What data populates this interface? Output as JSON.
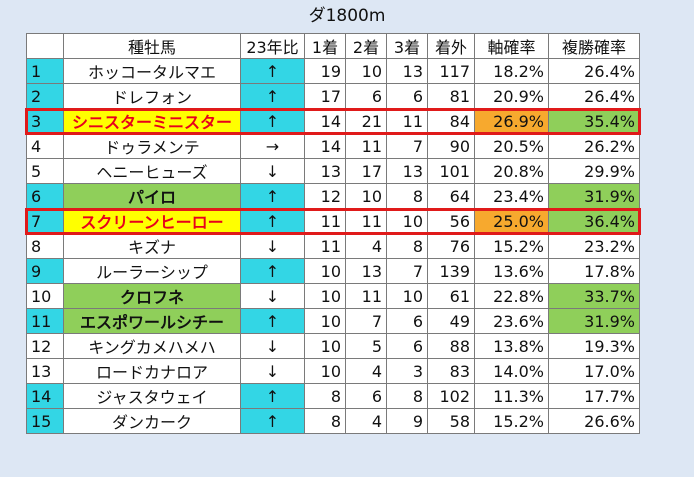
{
  "title": "ダ1800m",
  "headers": [
    "",
    "種牡馬",
    "23年比",
    "1着",
    "2着",
    "3着",
    "着外",
    "軸確率",
    "複勝確率"
  ],
  "rows": [
    {
      "rank": "1",
      "name": "ホッコータルマエ",
      "trend": "↑",
      "w1": "19",
      "w2": "10",
      "w3": "13",
      "out": "117",
      "axis": "18.2%",
      "show": "26.4%",
      "rank_hl": true,
      "name_style": "",
      "trend_hl": true,
      "axis_hl": "",
      "show_hl": "",
      "boxed": false
    },
    {
      "rank": "2",
      "name": "ドレフォン",
      "trend": "↑",
      "w1": "17",
      "w2": "6",
      "w3": "6",
      "out": "81",
      "axis": "20.9%",
      "show": "26.4%",
      "rank_hl": true,
      "name_style": "",
      "trend_hl": true,
      "axis_hl": "",
      "show_hl": "",
      "boxed": false
    },
    {
      "rank": "3",
      "name": "シニスターミニスター",
      "trend": "↑",
      "w1": "14",
      "w2": "21",
      "w3": "11",
      "out": "84",
      "axis": "26.9%",
      "show": "35.4%",
      "rank_hl": true,
      "name_style": "yellow",
      "trend_hl": true,
      "axis_hl": "orange",
      "show_hl": "green",
      "boxed": true
    },
    {
      "rank": "4",
      "name": "ドゥラメンテ",
      "trend": "→",
      "w1": "14",
      "w2": "11",
      "w3": "7",
      "out": "90",
      "axis": "20.5%",
      "show": "26.2%",
      "rank_hl": false,
      "name_style": "",
      "trend_hl": false,
      "axis_hl": "",
      "show_hl": "",
      "boxed": false
    },
    {
      "rank": "5",
      "name": "ヘニーヒューズ",
      "trend": "↓",
      "w1": "13",
      "w2": "17",
      "w3": "13",
      "out": "101",
      "axis": "20.8%",
      "show": "29.9%",
      "rank_hl": false,
      "name_style": "",
      "trend_hl": false,
      "axis_hl": "",
      "show_hl": "",
      "boxed": false
    },
    {
      "rank": "6",
      "name": "パイロ",
      "trend": "↑",
      "w1": "12",
      "w2": "10",
      "w3": "8",
      "out": "64",
      "axis": "23.4%",
      "show": "31.9%",
      "rank_hl": true,
      "name_style": "green",
      "trend_hl": true,
      "axis_hl": "",
      "show_hl": "green",
      "boxed": false
    },
    {
      "rank": "7",
      "name": "スクリーンヒーロー",
      "trend": "↑",
      "w1": "11",
      "w2": "11",
      "w3": "10",
      "out": "56",
      "axis": "25.0%",
      "show": "36.4%",
      "rank_hl": true,
      "name_style": "yellow",
      "trend_hl": true,
      "axis_hl": "orange",
      "show_hl": "green",
      "boxed": true
    },
    {
      "rank": "8",
      "name": "キズナ",
      "trend": "↓",
      "w1": "11",
      "w2": "4",
      "w3": "8",
      "out": "76",
      "axis": "15.2%",
      "show": "23.2%",
      "rank_hl": false,
      "name_style": "",
      "trend_hl": false,
      "axis_hl": "",
      "show_hl": "",
      "boxed": false
    },
    {
      "rank": "9",
      "name": "ルーラーシップ",
      "trend": "↑",
      "w1": "10",
      "w2": "13",
      "w3": "7",
      "out": "139",
      "axis": "13.6%",
      "show": "17.8%",
      "rank_hl": true,
      "name_style": "",
      "trend_hl": true,
      "axis_hl": "",
      "show_hl": "",
      "boxed": false
    },
    {
      "rank": "10",
      "name": "クロフネ",
      "trend": "↓",
      "w1": "10",
      "w2": "11",
      "w3": "10",
      "out": "61",
      "axis": "22.8%",
      "show": "33.7%",
      "rank_hl": false,
      "name_style": "green",
      "trend_hl": false,
      "axis_hl": "",
      "show_hl": "green",
      "boxed": false
    },
    {
      "rank": "11",
      "name": "エスポワールシチー",
      "trend": "↑",
      "w1": "10",
      "w2": "7",
      "w3": "6",
      "out": "49",
      "axis": "23.6%",
      "show": "31.9%",
      "rank_hl": true,
      "name_style": "green",
      "trend_hl": true,
      "axis_hl": "",
      "show_hl": "green",
      "boxed": false
    },
    {
      "rank": "12",
      "name": "キングカメハメハ",
      "trend": "↓",
      "w1": "10",
      "w2": "5",
      "w3": "6",
      "out": "88",
      "axis": "13.8%",
      "show": "19.3%",
      "rank_hl": false,
      "name_style": "",
      "trend_hl": false,
      "axis_hl": "",
      "show_hl": "",
      "boxed": false
    },
    {
      "rank": "13",
      "name": "ロードカナロア",
      "trend": "↓",
      "w1": "10",
      "w2": "4",
      "w3": "3",
      "out": "83",
      "axis": "14.0%",
      "show": "17.0%",
      "rank_hl": false,
      "name_style": "",
      "trend_hl": false,
      "axis_hl": "",
      "show_hl": "",
      "boxed": false
    },
    {
      "rank": "14",
      "name": "ジャスタウェイ",
      "trend": "↑",
      "w1": "8",
      "w2": "6",
      "w3": "8",
      "out": "102",
      "axis": "11.3%",
      "show": "17.7%",
      "rank_hl": true,
      "name_style": "",
      "trend_hl": true,
      "axis_hl": "",
      "show_hl": "",
      "boxed": false
    },
    {
      "rank": "15",
      "name": "ダンカーク",
      "trend": "↑",
      "w1": "8",
      "w2": "4",
      "w3": "9",
      "out": "58",
      "axis": "15.2%",
      "show": "26.6%",
      "rank_hl": true,
      "name_style": "",
      "trend_hl": true,
      "axis_hl": "",
      "show_hl": "",
      "boxed": false
    }
  ],
  "colors": {
    "cyan": "#33d6e5",
    "green": "#8fcf5a",
    "yellow": "#ffff00",
    "orange": "#f7a92e",
    "red": "#e01a1a",
    "background": "#dde7f4"
  }
}
